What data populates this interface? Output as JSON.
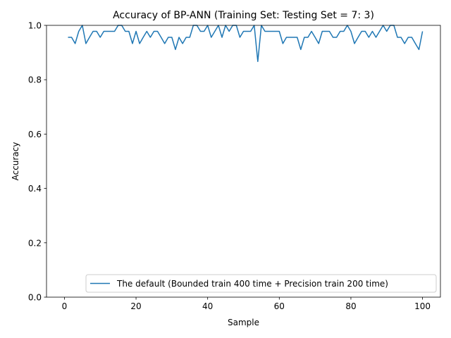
{
  "chart_data": {
    "type": "line",
    "title": "Accuracy of BP-ANN (Training Set: Testing Set = 7: 3)",
    "xlabel": "Sample",
    "ylabel": "Accuracy",
    "xlim": [
      -5,
      105
    ],
    "ylim": [
      0,
      1
    ],
    "xticks": [
      0,
      20,
      40,
      60,
      80,
      100
    ],
    "yticks": [
      0.0,
      0.2,
      0.4,
      0.6,
      0.8,
      1.0
    ],
    "xtick_labels": [
      "0",
      "20",
      "40",
      "60",
      "80",
      "100"
    ],
    "ytick_labels": [
      "0.0",
      "0.2",
      "0.4",
      "0.6",
      "0.8",
      "1.0"
    ],
    "grid": false,
    "legend_position": "lower-right",
    "series": [
      {
        "name": "The default (Bounded train 400 time + Precision train 200 time)",
        "color": "#1f77b4",
        "x": [
          1,
          2,
          3,
          4,
          5,
          6,
          7,
          8,
          9,
          10,
          11,
          12,
          13,
          14,
          15,
          16,
          17,
          18,
          19,
          20,
          21,
          22,
          23,
          24,
          25,
          26,
          27,
          28,
          29,
          30,
          31,
          32,
          33,
          34,
          35,
          36,
          37,
          38,
          39,
          40,
          41,
          42,
          43,
          44,
          45,
          46,
          47,
          48,
          49,
          50,
          51,
          52,
          53,
          54,
          55,
          56,
          57,
          58,
          59,
          60,
          61,
          62,
          63,
          64,
          65,
          66,
          67,
          68,
          69,
          70,
          71,
          72,
          73,
          74,
          75,
          76,
          77,
          78,
          79,
          80,
          81,
          82,
          83,
          84,
          85,
          86,
          87,
          88,
          89,
          90,
          91,
          92,
          93,
          94,
          95,
          96,
          97,
          98,
          99,
          100
        ],
        "values": [
          0.956,
          0.956,
          0.933,
          0.978,
          1.0,
          0.933,
          0.956,
          0.978,
          0.978,
          0.956,
          0.978,
          0.978,
          0.978,
          0.978,
          1.0,
          1.0,
          0.978,
          0.978,
          0.933,
          0.978,
          0.933,
          0.956,
          0.978,
          0.956,
          0.978,
          0.978,
          0.956,
          0.933,
          0.956,
          0.956,
          0.911,
          0.956,
          0.933,
          0.956,
          0.956,
          1.0,
          1.0,
          0.978,
          0.978,
          1.0,
          0.956,
          0.978,
          1.0,
          0.956,
          1.0,
          0.978,
          1.0,
          1.0,
          0.956,
          0.978,
          0.978,
          0.978,
          1.0,
          0.867,
          1.0,
          0.978,
          0.978,
          0.978,
          0.978,
          0.978,
          0.933,
          0.956,
          0.956,
          0.956,
          0.956,
          0.911,
          0.956,
          0.956,
          0.978,
          0.956,
          0.933,
          0.978,
          0.978,
          0.978,
          0.956,
          0.956,
          0.978,
          0.978,
          1.0,
          0.978,
          0.933,
          0.956,
          0.978,
          0.978,
          0.956,
          0.978,
          0.956,
          0.978,
          1.0,
          0.978,
          1.0,
          1.0,
          0.956,
          0.956,
          0.933,
          0.956,
          0.956,
          0.933,
          0.911,
          0.978
        ]
      }
    ]
  }
}
